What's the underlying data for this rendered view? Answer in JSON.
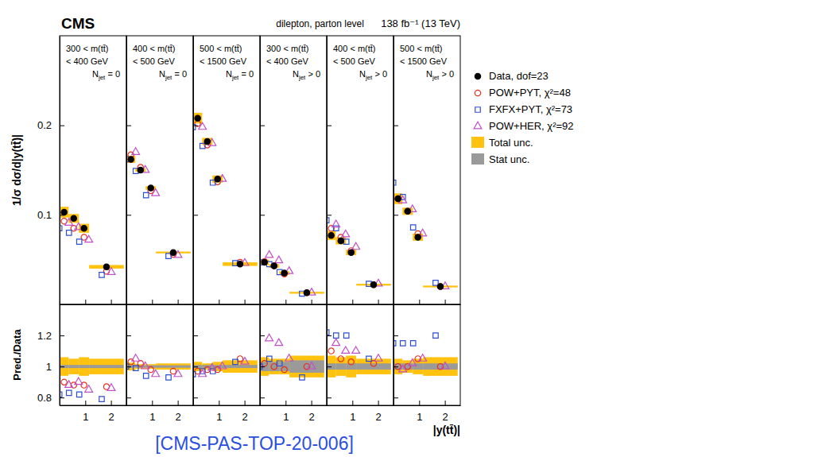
{
  "chart_data": {
    "type": "scatter",
    "title": "CMS",
    "subtitle": "dilepton, parton level",
    "lumi": "138 fb⁻¹ (13 TeV)",
    "y_label": "1/σ dσ/d|y(tt̄)|",
    "ratio_y_label": "Pred./Data",
    "x_label": "|y(tt̄)|",
    "reference": "[CMS-PAS-TOP-20-006]",
    "bins": [
      0,
      0.35,
      0.75,
      1.15,
      2.5
    ],
    "xlim": [
      0,
      2.6
    ],
    "xticks": [
      1,
      2
    ],
    "ylim": [
      0,
      0.3
    ],
    "yticks": [
      0.1,
      0.2
    ],
    "ratio_ylim": [
      0.75,
      1.4
    ],
    "ratio_yticks": [
      0.8,
      1,
      1.2
    ],
    "ratio_reference": 1,
    "legend": "right",
    "series": [
      {
        "name": "Data, dof=23",
        "color": "#000000",
        "marker": "filled-circle"
      },
      {
        "name": "POW+PYT, χ²=48",
        "color": "#e8301c",
        "marker": "open-circle"
      },
      {
        "name": "FXFX+PYT, χ²=73",
        "color": "#2f4fd0",
        "marker": "open-square"
      },
      {
        "name": "POW+HER, χ²=92",
        "color": "#c050c8",
        "marker": "open-triangle"
      }
    ],
    "bands": [
      {
        "name": "Total unc.",
        "color": "#ffc20e"
      },
      {
        "name": "Stat unc.",
        "color": "#9a9a9a"
      }
    ],
    "panels": [
      {
        "title": [
          "300 < m(tt̄)",
          "< 400 GeV"
        ],
        "jets": {
          "main": "N",
          "sub": "jet",
          "cond": " = 0"
        },
        "values": [
          [
            0.103,
            0.096,
            0.085,
            0.042
          ],
          [
            0.093,
            0.085,
            0.075,
            0.037
          ],
          [
            0.085,
            0.08,
            0.07,
            0.033
          ],
          [
            0.091,
            0.086,
            0.072,
            0.036
          ]
        ],
        "ratios": [
          [
            0.9,
            0.88,
            0.88,
            0.87
          ],
          [
            0.82,
            0.83,
            0.82,
            0.79
          ],
          [
            0.88,
            0.9,
            0.85,
            0.86
          ]
        ],
        "total_unc": [
          0.006,
          0.005,
          0.005,
          0.002
        ],
        "ratio_total_unc": [
          0.06,
          0.05,
          0.06,
          0.05
        ],
        "ratio_stat_unc": [
          0.01,
          0.01,
          0.01,
          0.01
        ]
      },
      {
        "title": [
          "400 < m(tt̄)",
          "< 500 GeV"
        ],
        "jets": {
          "main": "N",
          "sub": "jet",
          "cond": " = 0"
        },
        "values": [
          [
            0.162,
            0.15,
            0.13,
            0.058
          ],
          [
            0.167,
            0.153,
            0.127,
            0.056
          ],
          [
            0.162,
            0.149,
            0.122,
            0.054
          ],
          [
            0.17,
            0.15,
            0.124,
            0.055
          ]
        ],
        "ratios": [
          [
            1.03,
            1.02,
            0.98,
            0.97
          ],
          [
            1.0,
            0.99,
            0.94,
            0.93
          ],
          [
            1.05,
            1.0,
            0.95,
            0.95
          ]
        ],
        "total_unc": [
          0.004,
          0.002,
          0.002,
          0.001
        ],
        "ratio_total_unc": [
          0.025,
          0.015,
          0.015,
          0.02
        ],
        "ratio_stat_unc": [
          0.008,
          0.008,
          0.008,
          0.008
        ]
      },
      {
        "title": [
          "500 < m(tt̄)",
          "< 1500 GeV"
        ],
        "jets": {
          "main": "N",
          "sub": "jet",
          "cond": " = 0"
        },
        "values": [
          [
            0.208,
            0.182,
            0.14,
            0.045
          ],
          [
            0.202,
            0.178,
            0.137,
            0.047
          ],
          [
            0.198,
            0.177,
            0.136,
            0.046
          ],
          [
            0.198,
            0.18,
            0.14,
            0.046
          ]
        ],
        "ratios": [
          [
            0.97,
            0.98,
            0.98,
            1.05
          ],
          [
            0.95,
            0.97,
            0.97,
            1.03
          ],
          [
            0.95,
            0.99,
            1.0,
            1.03
          ]
        ],
        "total_unc": [
          0.006,
          0.004,
          0.004,
          0.002
        ],
        "ratio_total_unc": [
          0.03,
          0.02,
          0.03,
          0.04
        ],
        "ratio_stat_unc": [
          0.01,
          0.01,
          0.01,
          0.01
        ]
      },
      {
        "title": [
          "300 < m(tt̄)",
          "< 400 GeV"
        ],
        "jets": {
          "main": "N",
          "sub": "jet",
          "cond": " > 0"
        },
        "values": [
          [
            0.047,
            0.043,
            0.035,
            0.013
          ],
          [
            0.048,
            0.043,
            0.034,
            0.013
          ],
          [
            0.047,
            0.045,
            0.036,
            0.012
          ],
          [
            0.055,
            0.049,
            0.037,
            0.013
          ]
        ],
        "ratios": [
          [
            1.02,
            1.0,
            0.98,
            1.0
          ],
          [
            1.0,
            1.05,
            1.02,
            0.93
          ],
          [
            1.18,
            1.15,
            1.05,
            1.0
          ]
        ],
        "total_unc": [
          0.003,
          0.002,
          0.002,
          0.001
        ],
        "ratio_total_unc": [
          0.06,
          0.05,
          0.05,
          0.07
        ],
        "ratio_stat_unc": [
          0.03,
          0.03,
          0.03,
          0.04
        ]
      },
      {
        "title": [
          "400 < m(tt̄)",
          "< 500 GeV"
        ],
        "jets": {
          "main": "N",
          "sub": "jet",
          "cond": " > 0"
        },
        "values": [
          [
            0.077,
            0.071,
            0.058,
            0.022
          ],
          [
            0.085,
            0.075,
            0.06,
            0.022
          ],
          [
            0.094,
            0.085,
            0.07,
            0.023
          ],
          [
            0.089,
            0.078,
            0.064,
            0.023
          ]
        ],
        "ratios": [
          [
            1.1,
            1.05,
            1.03,
            1.02
          ],
          [
            1.22,
            1.2,
            1.2,
            1.05
          ],
          [
            1.15,
            1.1,
            1.1,
            1.05
          ]
        ],
        "total_unc": [
          0.005,
          0.004,
          0.003,
          0.001
        ],
        "ratio_total_unc": [
          0.07,
          0.06,
          0.07,
          0.05
        ],
        "ratio_stat_unc": [
          0.02,
          0.02,
          0.02,
          0.02
        ]
      },
      {
        "title": [
          "500 < m(tt̄)",
          "< 1500 GeV"
        ],
        "jets": {
          "main": "N",
          "sub": "jet",
          "cond": " > 0"
        },
        "values": [
          [
            0.118,
            0.104,
            0.075,
            0.02
          ],
          [
            0.118,
            0.104,
            0.079,
            0.02
          ],
          [
            0.136,
            0.12,
            0.086,
            0.024
          ],
          [
            0.116,
            0.106,
            0.079,
            0.02
          ]
        ],
        "ratios": [
          [
            1.0,
            1.0,
            1.05,
            1.0
          ],
          [
            1.15,
            1.15,
            1.15,
            1.2
          ],
          [
            0.98,
            1.02,
            1.05,
            1.0
          ]
        ],
        "total_unc": [
          0.006,
          0.004,
          0.004,
          0.001
        ],
        "ratio_total_unc": [
          0.05,
          0.04,
          0.05,
          0.06
        ],
        "ratio_stat_unc": [
          0.02,
          0.02,
          0.02,
          0.02
        ]
      }
    ]
  }
}
